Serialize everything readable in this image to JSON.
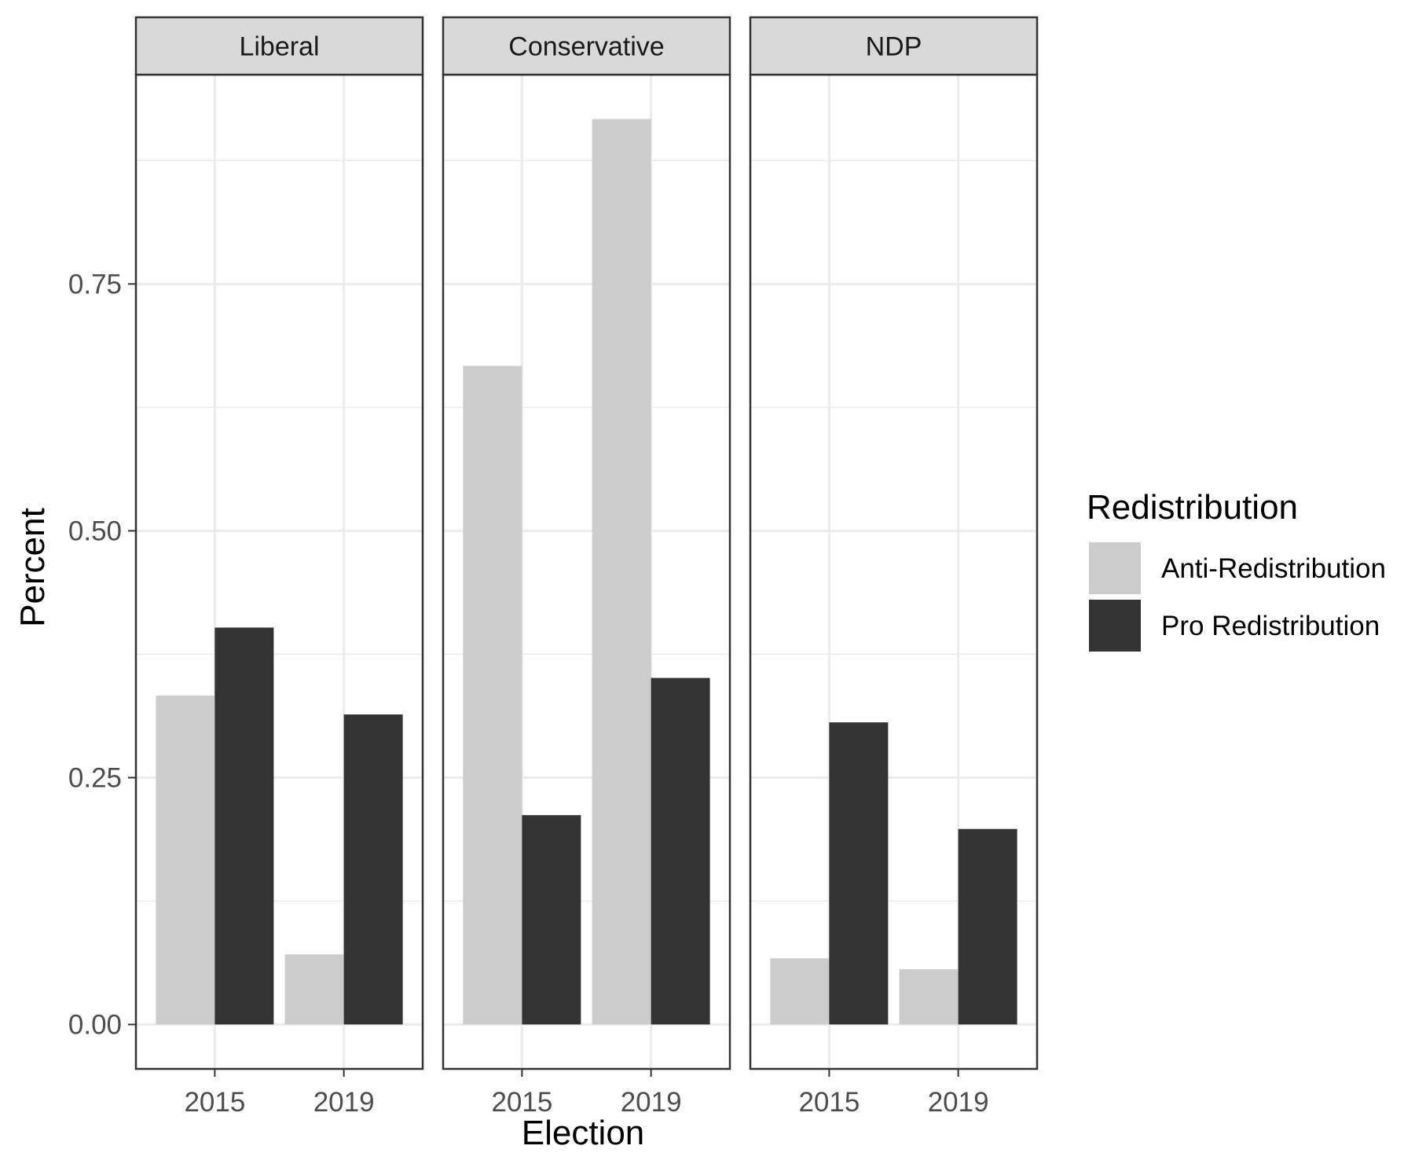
{
  "chart_data": {
    "type": "bar",
    "facets": [
      {
        "name": "Liberal",
        "categories": [
          "2015",
          "2019"
        ],
        "series": [
          {
            "name": "Anti-Redistribution",
            "values": [
              0.333,
              0.071
            ]
          },
          {
            "name": "Pro Redistribution",
            "values": [
              0.402,
              0.314
            ]
          }
        ]
      },
      {
        "name": "Conservative",
        "categories": [
          "2015",
          "2019"
        ],
        "series": [
          {
            "name": "Anti-Redistribution",
            "values": [
              0.667,
              0.917
            ]
          },
          {
            "name": "Pro Redistribution",
            "values": [
              0.212,
              0.351
            ]
          }
        ]
      },
      {
        "name": "NDP",
        "categories": [
          "2015",
          "2019"
        ],
        "series": [
          {
            "name": "Anti-Redistribution",
            "values": [
              0.067,
              0.056
            ]
          },
          {
            "name": "Pro Redistribution",
            "values": [
              0.306,
              0.198
            ]
          }
        ]
      }
    ],
    "xlabel": "Election",
    "ylabel": "Percent",
    "ylim": [
      -0.045,
      0.962
    ],
    "yticks": [
      "0.00",
      "0.25",
      "0.50",
      "0.75"
    ],
    "ytick_values": [
      0,
      0.25,
      0.5,
      0.75
    ],
    "legend": {
      "title": "Redistribution",
      "position": "right",
      "entries": [
        "Anti-Redistribution",
        "Pro Redistribution"
      ]
    },
    "colors": {
      "Anti-Redistribution": "#cccccc",
      "Pro Redistribution": "#333333",
      "strip": "#d9d9d9",
      "grid": "#ebebeb",
      "border": "#333333"
    },
    "grid": true
  }
}
